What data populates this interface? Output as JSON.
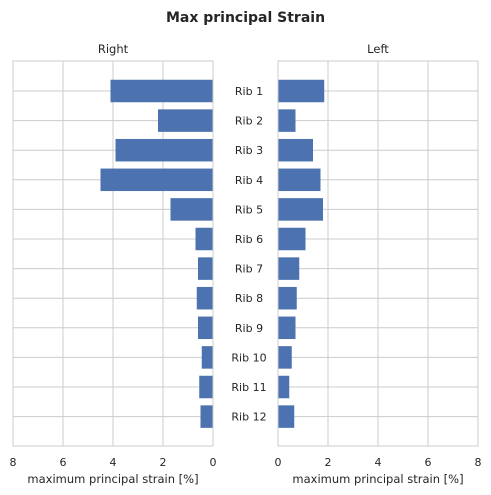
{
  "chart_data": {
    "type": "bar",
    "orientation": "horizontal",
    "title": "Max principal Strain",
    "categories": [
      "Rib 1",
      "Rib 2",
      "Rib 3",
      "Rib 4",
      "Rib 5",
      "Rib 6",
      "Rib 7",
      "Rib 8",
      "Rib 9",
      "Rib 10",
      "Rib 11",
      "Rib 12"
    ],
    "bar_color": "#4c72b0",
    "grid": true,
    "panels": [
      {
        "subtitle": "Right",
        "xlabel": "maximum principal strain [%]",
        "xlim": [
          8,
          0
        ],
        "xticks": [
          "8",
          "6",
          "4",
          "2",
          "0"
        ],
        "values": [
          4.1,
          2.2,
          3.9,
          4.5,
          1.7,
          0.7,
          0.6,
          0.65,
          0.6,
          0.45,
          0.55,
          0.5
        ]
      },
      {
        "subtitle": "Left",
        "xlabel": "maximum principal strain [%]",
        "xlim": [
          0,
          8
        ],
        "xticks": [
          "0",
          "2",
          "4",
          "6",
          "8"
        ],
        "values": [
          1.85,
          0.7,
          1.4,
          1.7,
          1.8,
          1.1,
          0.85,
          0.75,
          0.7,
          0.55,
          0.45,
          0.65
        ]
      }
    ]
  }
}
